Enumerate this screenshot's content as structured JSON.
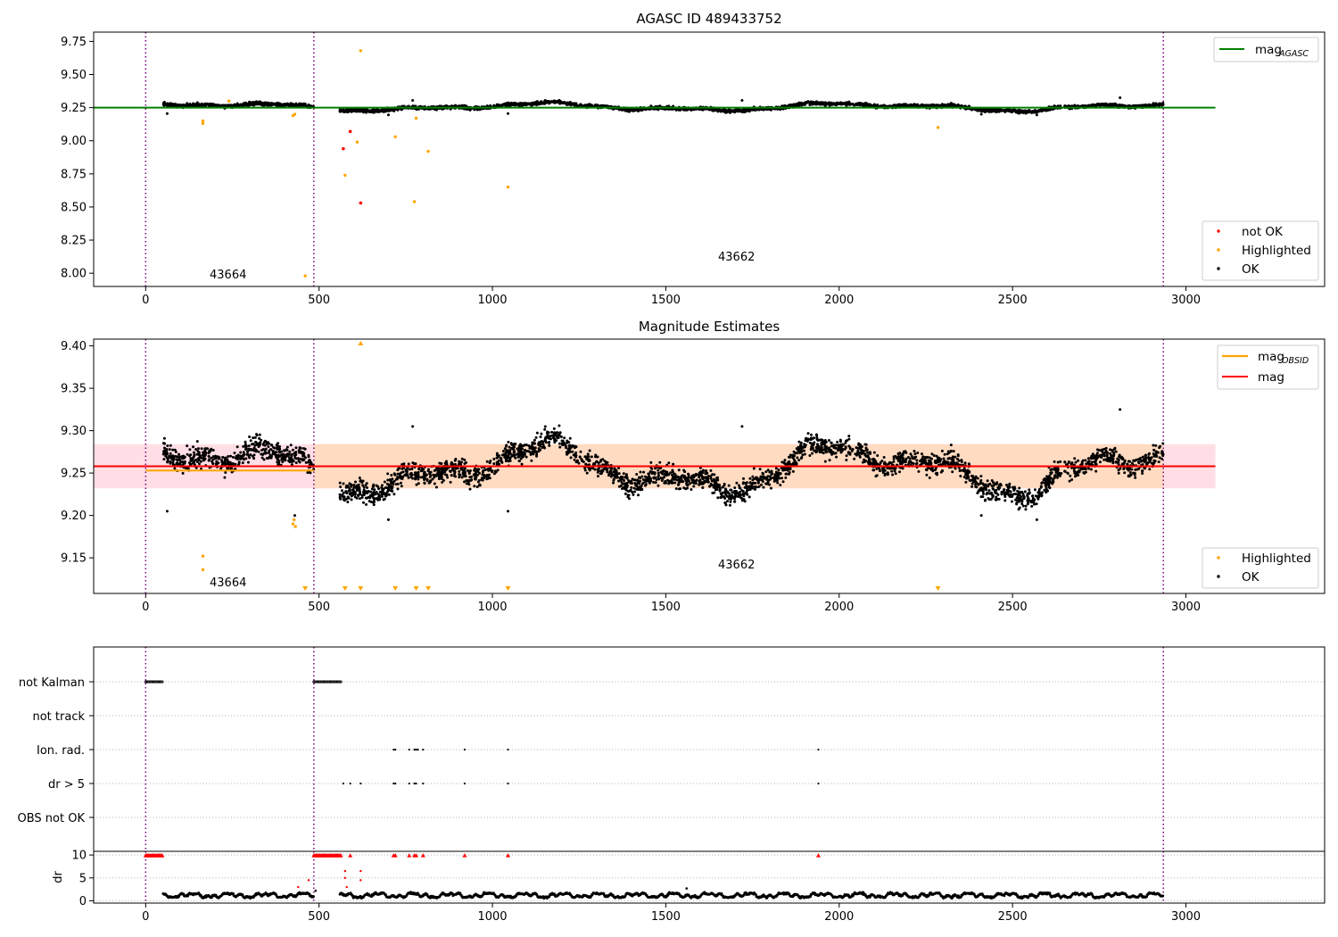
{
  "colors": {
    "ok": "#000000",
    "not_ok": "#ff0000",
    "highlighted": "#ffa500",
    "mag_agasc_line": "#008000",
    "mag_obsid_line": "#ffa500",
    "mag_line": "#ff0000",
    "band_outer": "#ffc0cb",
    "band_inner": "#ffdab9",
    "obsid_boundary": "#800080",
    "grid": "#b0b0b0"
  },
  "chart_data": [
    {
      "type": "scatter",
      "title": "AGASC ID 489433752",
      "xlim": [
        -150,
        3400
      ],
      "ylim": [
        7.9,
        9.82
      ],
      "x_ticks": [
        0,
        500,
        1000,
        1500,
        2000,
        2500,
        3000
      ],
      "y_ticks": [
        8.0,
        8.25,
        8.5,
        8.75,
        9.0,
        9.25,
        9.5,
        9.75
      ],
      "y_tick_format": 2,
      "obsid_boundaries": [
        0,
        485,
        2935
      ],
      "obsid_labels": [
        {
          "text": "43664",
          "x": 240,
          "y": 7.95
        },
        {
          "text": "43662",
          "x": 1710,
          "y": 8.02
        }
      ],
      "lines": [
        {
          "legend_base": "mag",
          "legend_sub": "AGASC",
          "color": "#008000",
          "x": [
            -150,
            3085
          ],
          "y": 9.25
        }
      ],
      "legend_lines_position": "top-right",
      "legend_points_position": "bottom-right",
      "legend_points": [
        {
          "label": "not OK",
          "color": "#ff0000"
        },
        {
          "label": "Highlighted",
          "color": "#ffa500"
        },
        {
          "label": "OK",
          "color": "#000000"
        }
      ],
      "ok_segments": [
        {
          "x": [
            50,
            485
          ],
          "base": 9.255,
          "amp": 0.022,
          "noise": 0.012
        },
        {
          "x": [
            560,
            2935
          ],
          "base": 9.255,
          "amp": 0.028,
          "noise": 0.012
        }
      ],
      "highlighted_points": [
        [
          165,
          9.15
        ],
        [
          165,
          9.13
        ],
        [
          240,
          9.3
        ],
        [
          425,
          9.19
        ],
        [
          430,
          9.2
        ],
        [
          460,
          7.98
        ],
        [
          575,
          8.74
        ],
        [
          610,
          8.99
        ],
        [
          620,
          9.68
        ],
        [
          720,
          9.03
        ],
        [
          775,
          8.54
        ],
        [
          780,
          9.17
        ],
        [
          815,
          8.92
        ],
        [
          1045,
          8.65
        ],
        [
          2285,
          9.1
        ]
      ],
      "not_ok_points": [
        [
          570,
          8.94
        ],
        [
          590,
          9.07
        ],
        [
          620,
          8.53
        ]
      ]
    },
    {
      "type": "scatter",
      "title": "Magnitude Estimates",
      "xlim": [
        -150,
        3400
      ],
      "ylim": [
        9.108,
        9.408
      ],
      "x_ticks": [
        0,
        500,
        1000,
        1500,
        2000,
        2500,
        3000
      ],
      "y_ticks": [
        9.15,
        9.2,
        9.25,
        9.3,
        9.35,
        9.4
      ],
      "y_tick_format": 2,
      "obsid_boundaries": [
        0,
        485,
        2935
      ],
      "obsid_labels": [
        {
          "text": "43664",
          "x": 240,
          "y": 9.12
        },
        {
          "text": "43662",
          "x": 1710,
          "y": 9.14
        }
      ],
      "band_outer": {
        "x": [
          -150,
          3085
        ],
        "y": [
          9.232,
          9.284
        ]
      },
      "band_inner": {
        "x": [
          485,
          2935
        ],
        "y": [
          9.232,
          9.284
        ]
      },
      "lines": [
        {
          "legend_base": "mag",
          "legend_sub": "OBSID",
          "color": "#ffa500",
          "x": [
            0,
            485
          ],
          "y": 9.253
        },
        {
          "legend_base": "mag",
          "legend_sub": "",
          "color": "#ff0000",
          "x": [
            -150,
            3085
          ],
          "y": 9.258
        }
      ],
      "legend_lines_position": "top-right",
      "legend_points_position": "bottom-right",
      "legend_points": [
        {
          "label": "Highlighted",
          "color": "#ffa500"
        },
        {
          "label": "OK",
          "color": "#000000"
        }
      ],
      "ok_segments": [
        {
          "x": [
            50,
            485
          ],
          "base": 9.255,
          "amp": 0.022,
          "noise": 0.012
        },
        {
          "x": [
            560,
            2935
          ],
          "base": 9.255,
          "amp": 0.028,
          "noise": 0.012
        }
      ],
      "highlighted_points": [
        [
          165,
          9.152
        ],
        [
          165,
          9.136
        ],
        [
          425,
          9.19
        ],
        [
          428,
          9.195
        ],
        [
          432,
          9.187
        ]
      ],
      "offscale_low_x": [
        460,
        575,
        620,
        720,
        780,
        815,
        1045,
        2285
      ],
      "offscale_high_x": [
        620
      ]
    },
    {
      "type": "scatter",
      "title": "",
      "xlim": [
        -150,
        3400
      ],
      "x_ticks": [
        0,
        500,
        1000,
        1500,
        2000,
        2500,
        3000
      ],
      "obsid_boundaries": [
        0,
        485,
        2935
      ],
      "flag_rows": [
        "not Kalman",
        "not track",
        "Ion. rad.",
        "dr > 5",
        "OBS not OK"
      ],
      "flag_points": {
        "not Kalman": [
          [
            0,
            50
          ],
          [
            485,
            565
          ]
        ],
        "not track": [],
        "Ion. rad.": [
          715,
          720,
          760,
          775,
          780,
          785,
          800,
          920,
          1045,
          1940
        ],
        "dr > 5": [
          570,
          590,
          620,
          715,
          720,
          760,
          775,
          780,
          800,
          920,
          1045,
          1940
        ],
        "OBS not OK": []
      },
      "dr_panel": {
        "ylabel": "dr",
        "ylim": [
          -0.5,
          10.8
        ],
        "y_ticks": [
          0,
          5,
          10
        ],
        "clip_value": 10,
        "clip_x": [
          [
            0,
            50
          ],
          [
            485,
            565
          ],
          590,
          715,
          720,
          760,
          775,
          780,
          800,
          920,
          1045,
          1940
        ],
        "red_points": [
          [
            440,
            3
          ],
          [
            470,
            4.5
          ],
          [
            575,
            6.5
          ],
          [
            575,
            5
          ],
          [
            580,
            3
          ],
          [
            620,
            6.5
          ],
          [
            620,
            4.5
          ]
        ],
        "extra_points": [
          [
            490,
            2.2
          ],
          [
            1560,
            2.7
          ]
        ],
        "typical_level": 1.2
      }
    }
  ]
}
